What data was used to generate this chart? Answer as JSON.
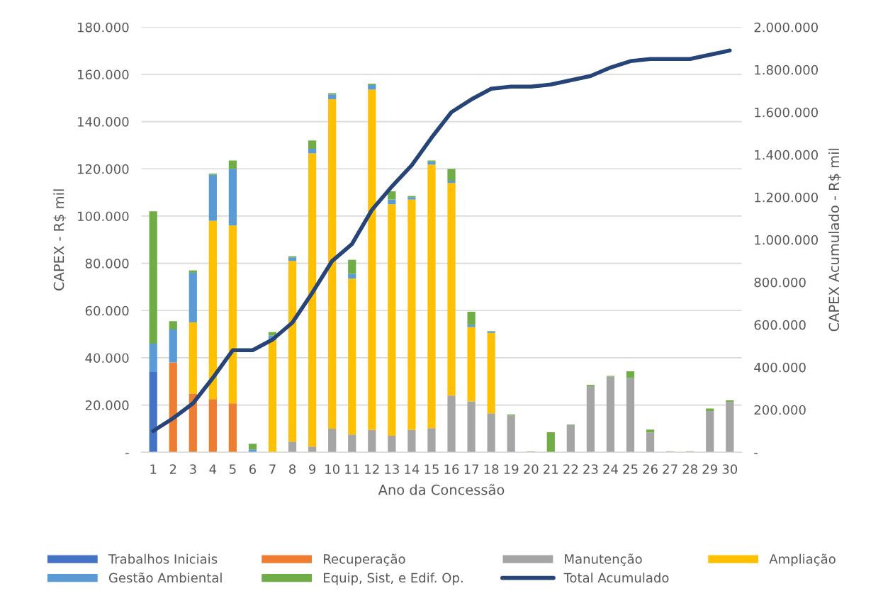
{
  "chart_data": {
    "type": "bar",
    "stacked": true,
    "xlabel": "Ano da Concessão",
    "ylabel": "CAPEX - R$ mil",
    "y2label": "CAPEX Acumulado - R$ mil",
    "categories": [
      "1",
      "2",
      "3",
      "4",
      "5",
      "6",
      "7",
      "8",
      "9",
      "10",
      "11",
      "12",
      "13",
      "14",
      "15",
      "16",
      "17",
      "18",
      "19",
      "20",
      "21",
      "22",
      "23",
      "24",
      "25",
      "26",
      "27",
      "28",
      "29",
      "30"
    ],
    "series": [
      {
        "name": "Trabalhos Iniciais",
        "color": "#4472c4",
        "values": [
          34000,
          0,
          0,
          0,
          0,
          0,
          0,
          0,
          0,
          0,
          0,
          0,
          0,
          0,
          0,
          0,
          0,
          0,
          0,
          0,
          0,
          0,
          0,
          0,
          0,
          0,
          0,
          0,
          0,
          0
        ]
      },
      {
        "name": "Recuperação",
        "color": "#ed7d31",
        "values": [
          0,
          38000,
          24800,
          22500,
          20700,
          0,
          0,
          0,
          0,
          0,
          0,
          0,
          0,
          0,
          0,
          0,
          0,
          0,
          0,
          0,
          0,
          0,
          0,
          0,
          0,
          0,
          0,
          0,
          0,
          0
        ]
      },
      {
        "name": "Manutenção",
        "color": "#a5a5a5",
        "values": [
          0,
          0,
          0,
          0,
          0,
          0,
          0,
          4500,
          2400,
          10000,
          7500,
          9500,
          7000,
          9500,
          10200,
          24000,
          21500,
          16500,
          15500,
          0,
          0,
          11500,
          28000,
          32000,
          31500,
          8400,
          0,
          0,
          17500,
          21300
        ]
      },
      {
        "name": "Ampliação",
        "color": "#ffc000",
        "values": [
          0,
          0,
          30200,
          75500,
          75300,
          0,
          47500,
          76500,
          124100,
          139500,
          66000,
          144000,
          98000,
          97500,
          111600,
          90000,
          31500,
          34000,
          0,
          0,
          0,
          0,
          0,
          0,
          0,
          0,
          0,
          0,
          0,
          0
        ]
      },
      {
        "name": "Gestão Ambiental",
        "color": "#5b9bd5",
        "values": [
          12000,
          14000,
          21000,
          19500,
          24000,
          1200,
          1900,
          1500,
          2000,
          2000,
          2000,
          2000,
          2000,
          1000,
          1200,
          1000,
          1000,
          500,
          0,
          0,
          0,
          0,
          0,
          0,
          0,
          0,
          0,
          0,
          0,
          0
        ]
      },
      {
        "name": "Equip, Sist, e Edif. Op.",
        "color": "#70ad47",
        "values": [
          56000,
          3500,
          1000,
          500,
          3500,
          2400,
          1500,
          500,
          3500,
          500,
          6000,
          500,
          3500,
          500,
          500,
          5000,
          5500,
          300,
          500,
          300,
          8500,
          200,
          500,
          300,
          2800,
          1200,
          300,
          300,
          1000,
          700
        ]
      },
      {
        "name": "Total Acumulado",
        "type": "line",
        "axis": "y2",
        "color": "#264478",
        "values": [
          100000,
          160000,
          230000,
          350000,
          480000,
          480000,
          530000,
          610000,
          750000,
          900000,
          980000,
          1140000,
          1250000,
          1350000,
          1480000,
          1600000,
          1660000,
          1710000,
          1720000,
          1720000,
          1730000,
          1750000,
          1770000,
          1810000,
          1840000,
          1850000,
          1850000,
          1850000,
          1870000,
          1890000
        ]
      }
    ],
    "ylim": [
      0,
      180000
    ],
    "yticks": [
      {
        "value": 0,
        "label": "-"
      },
      {
        "value": 20000,
        "label": "20.000"
      },
      {
        "value": 40000,
        "label": "40.000"
      },
      {
        "value": 60000,
        "label": "60.000"
      },
      {
        "value": 80000,
        "label": "80.000"
      },
      {
        "value": 100000,
        "label": "100.000"
      },
      {
        "value": 120000,
        "label": "120.000"
      },
      {
        "value": 140000,
        "label": "140.000"
      },
      {
        "value": 160000,
        "label": "160.000"
      },
      {
        "value": 180000,
        "label": "180.000"
      }
    ],
    "y2lim": [
      0,
      2000000
    ],
    "y2ticks": [
      {
        "value": 0,
        "label": "-"
      },
      {
        "value": 200000,
        "label": "200.000"
      },
      {
        "value": 400000,
        "label": "400.000"
      },
      {
        "value": 600000,
        "label": "600.000"
      },
      {
        "value": 800000,
        "label": "800.000"
      },
      {
        "value": 1000000,
        "label": "1.000.000"
      },
      {
        "value": 1200000,
        "label": "1.200.000"
      },
      {
        "value": 1400000,
        "label": "1.400.000"
      },
      {
        "value": 1600000,
        "label": "1.600.000"
      },
      {
        "value": 1800000,
        "label": "1.800.000"
      },
      {
        "value": 2000000,
        "label": "2.000.000"
      }
    ],
    "grid": "y",
    "legend": "bottom",
    "marker": "none",
    "line_style": "solid"
  }
}
